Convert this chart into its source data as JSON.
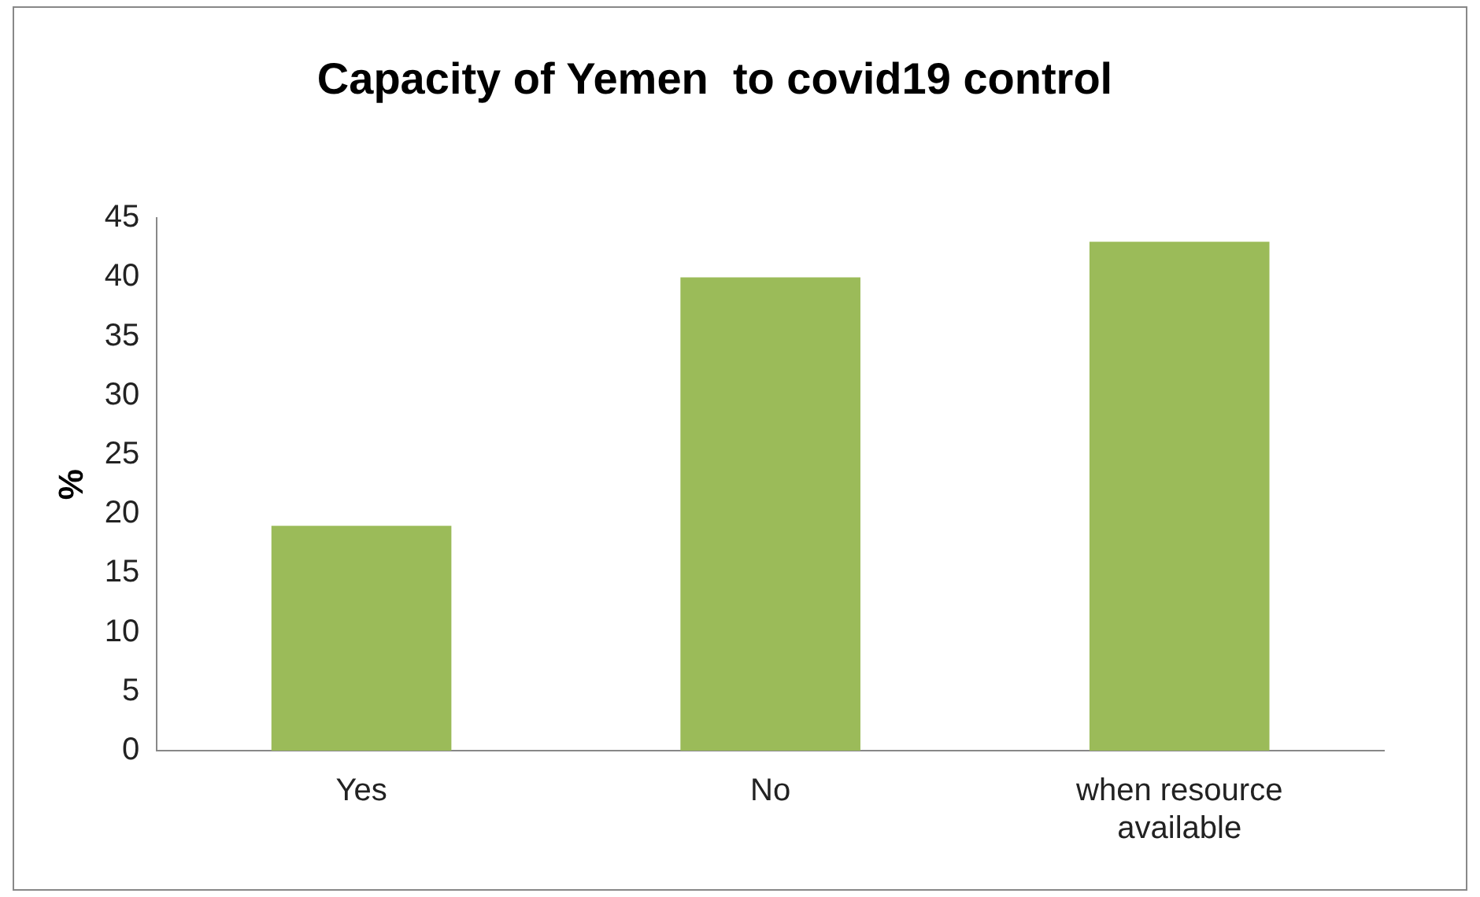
{
  "chart_data": {
    "type": "bar",
    "title": "Capacity of Yemen  to covid19 control",
    "ylabel": "%",
    "categories": [
      "Yes",
      "No",
      "when resource available"
    ],
    "values": [
      19,
      40,
      43
    ],
    "color": "#9bbb59",
    "ylim": [
      0,
      45
    ],
    "yticks": [
      0,
      5,
      10,
      15,
      20,
      25,
      30,
      35,
      40,
      45
    ],
    "grid": false
  }
}
